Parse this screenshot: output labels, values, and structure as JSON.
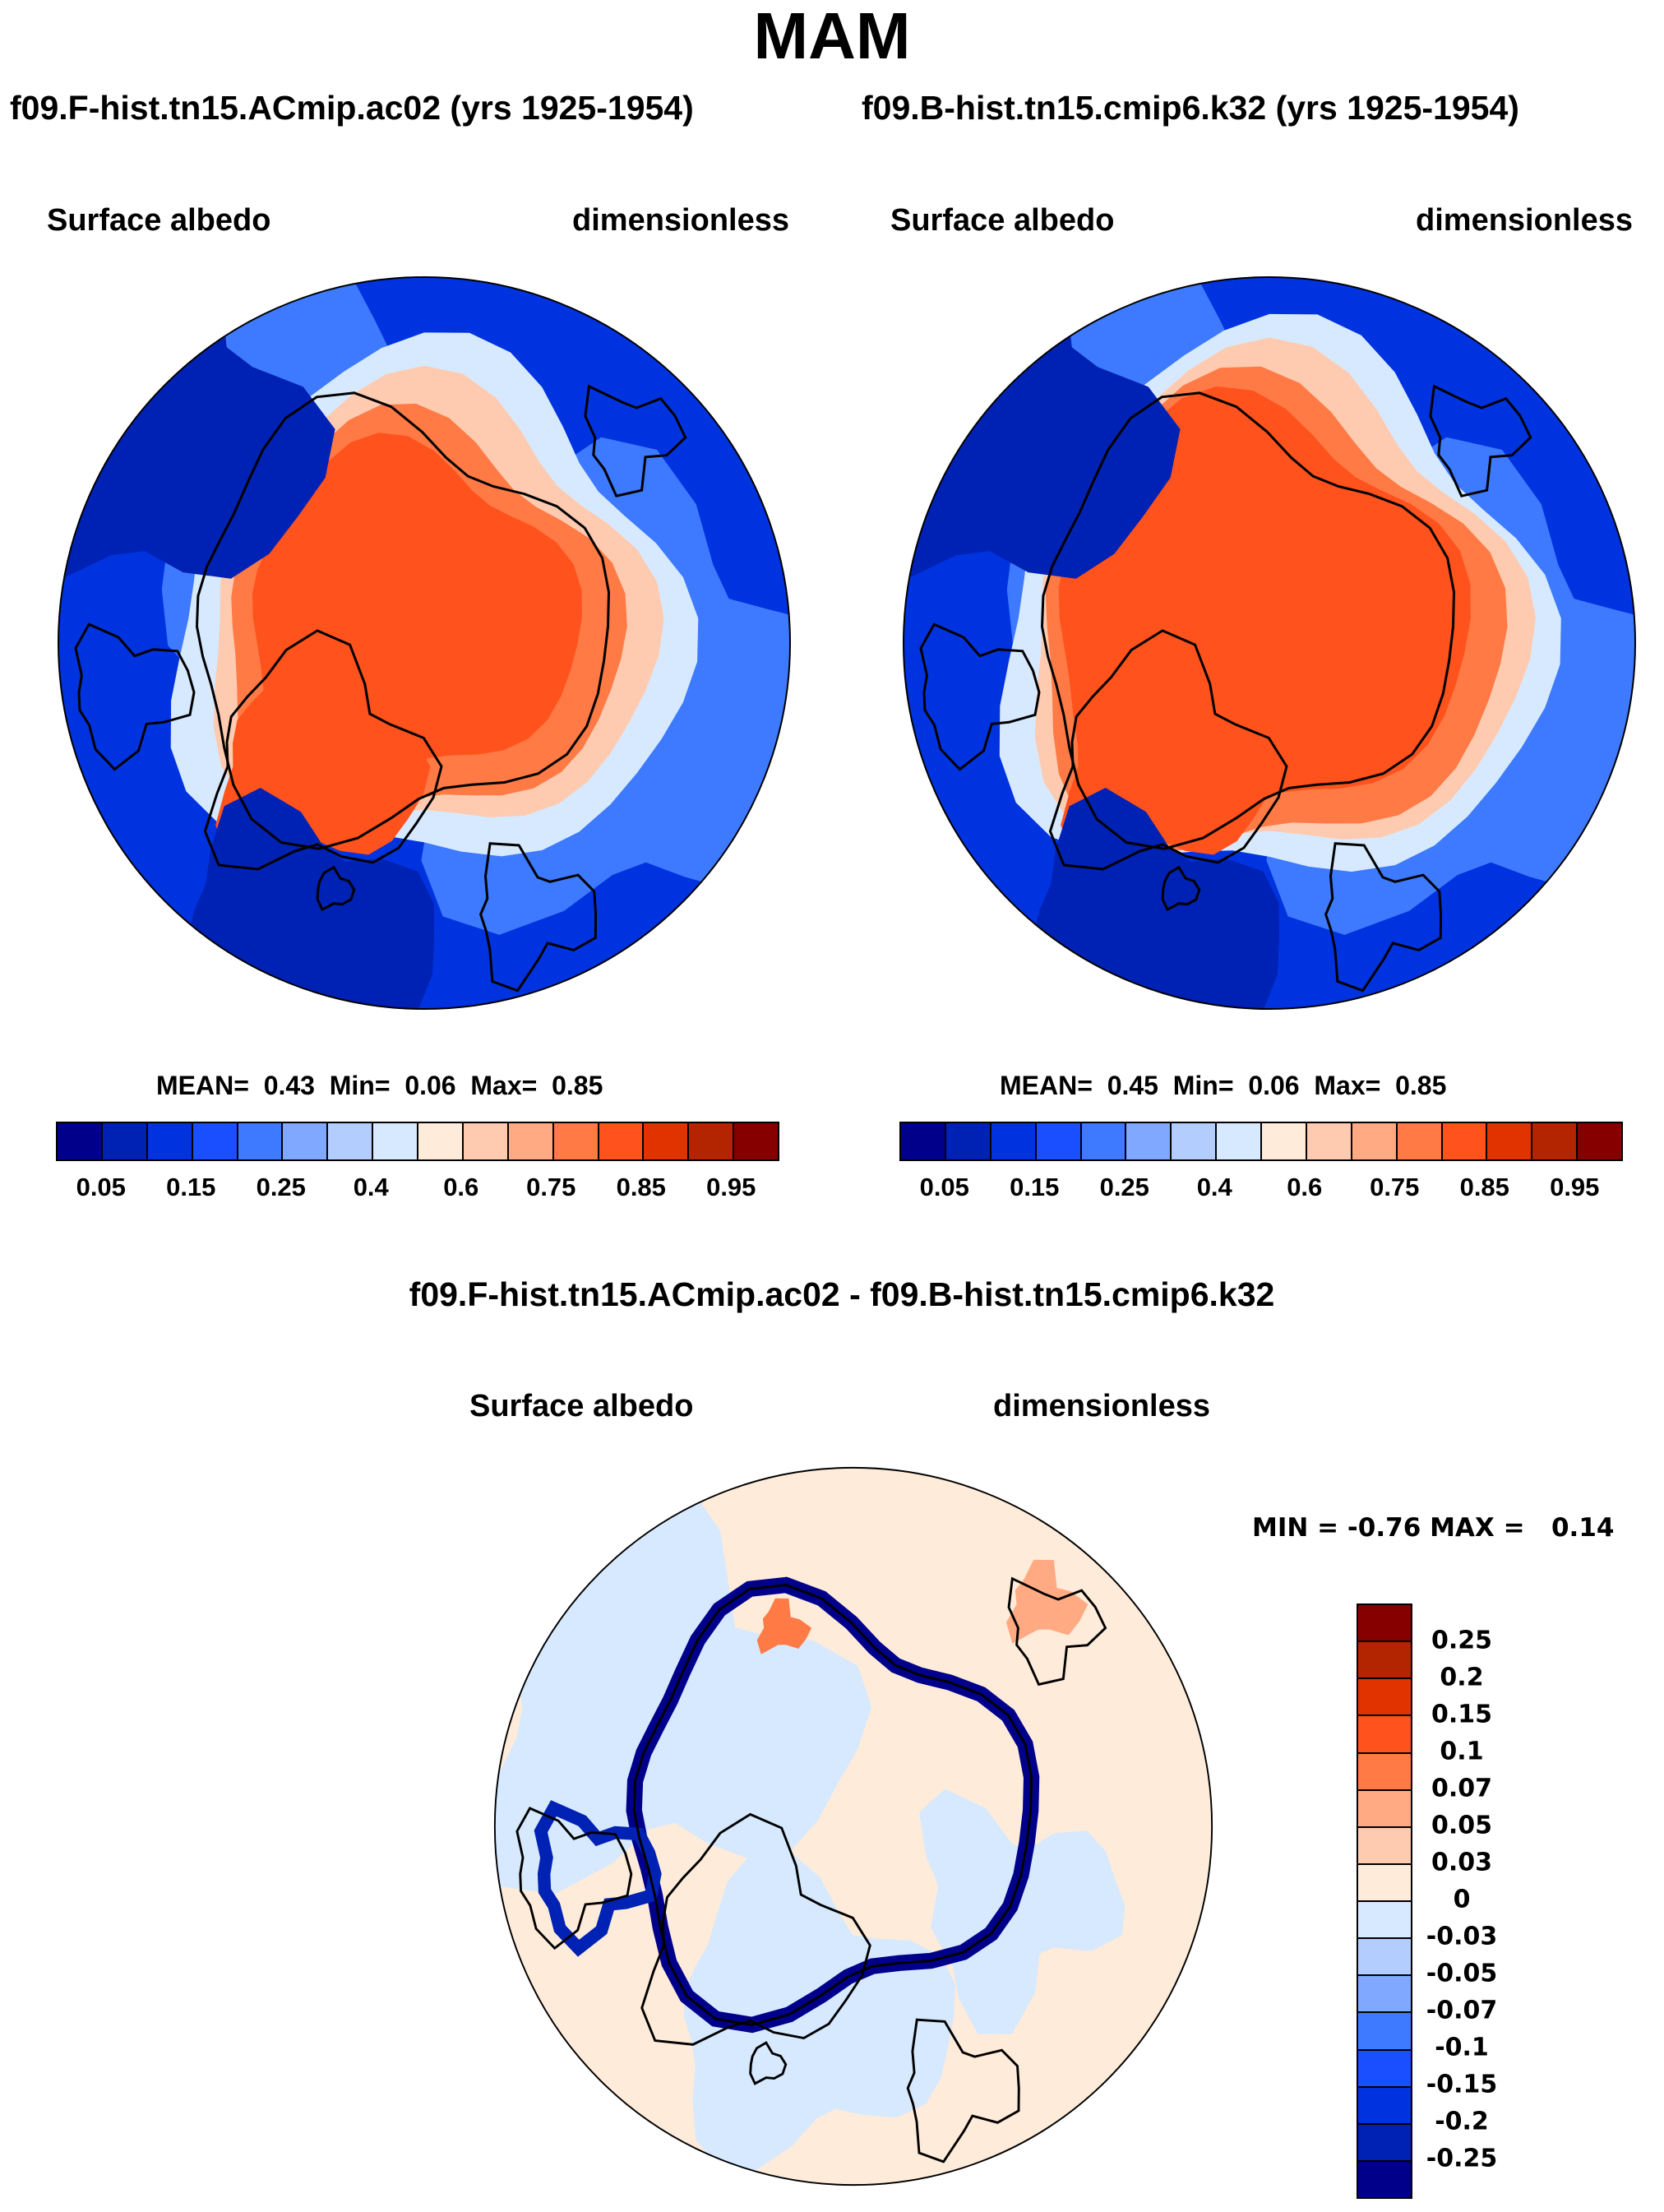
{
  "title": "MAM",
  "chart_data": [
    {
      "type": "heatmap",
      "projection": "north-polar-stereographic",
      "title": "f09.F-hist.tn15.ACmip.ac02 (yrs 1925-1954)",
      "variable": "Surface albedo",
      "units": "dimensionless",
      "stats": {
        "mean_label": "MEAN=",
        "mean": "0.43",
        "min_label": "Min=",
        "min": "0.06",
        "max_label": "Max=",
        "max": "0.85"
      },
      "levels": [
        "0.05",
        "0.1",
        "0.15",
        "0.2",
        "0.25",
        "0.3",
        "0.4",
        "0.5",
        "0.6",
        "0.7",
        "0.75",
        "0.8",
        "0.85",
        "0.9",
        "0.95"
      ],
      "tick_labels": [
        "0.05",
        "0.15",
        "0.25",
        "0.4",
        "0.6",
        "0.75",
        "0.85",
        "0.95"
      ]
    },
    {
      "type": "heatmap",
      "projection": "north-polar-stereographic",
      "title": "f09.B-hist.tn15.cmip6.k32 (yrs 1925-1954)",
      "variable": "Surface albedo",
      "units": "dimensionless",
      "stats": {
        "mean_label": "MEAN=",
        "mean": "0.45",
        "min_label": "Min=",
        "min": "0.06",
        "max_label": "Max=",
        "max": "0.85"
      },
      "levels": [
        "0.05",
        "0.1",
        "0.15",
        "0.2",
        "0.25",
        "0.3",
        "0.4",
        "0.5",
        "0.6",
        "0.7",
        "0.75",
        "0.8",
        "0.85",
        "0.9",
        "0.95"
      ],
      "tick_labels": [
        "0.05",
        "0.15",
        "0.25",
        "0.4",
        "0.6",
        "0.75",
        "0.85",
        "0.95"
      ]
    },
    {
      "type": "heatmap",
      "projection": "north-polar-stereographic",
      "title": "f09.F-hist.tn15.ACmip.ac02 - f09.B-hist.tn15.cmip6.k32",
      "variable": "Surface albedo",
      "units": "dimensionless",
      "stats": {
        "min_label": "MIN =",
        "min": "-0.76",
        "max_label": "MAX =",
        "max": "0.14"
      },
      "tick_labels": [
        "0.25",
        "0.2",
        "0.15",
        "0.1",
        "0.07",
        "0.05",
        "0.03",
        "0",
        "-0.03",
        "-0.05",
        "-0.07",
        "-0.1",
        "-0.15",
        "-0.2",
        "-0.25"
      ]
    }
  ],
  "colors": [
    "#00008b",
    "#0022b4",
    "#0033e0",
    "#1a4fff",
    "#3d7aff",
    "#80a8ff",
    "#b3cdff",
    "#d6e9ff",
    "#ffebd9",
    "#ffcbb0",
    "#ffaa82",
    "#ff7a45",
    "#ff521c",
    "#e13300",
    "#b32400",
    "#870000"
  ],
  "land_color": "#000000"
}
